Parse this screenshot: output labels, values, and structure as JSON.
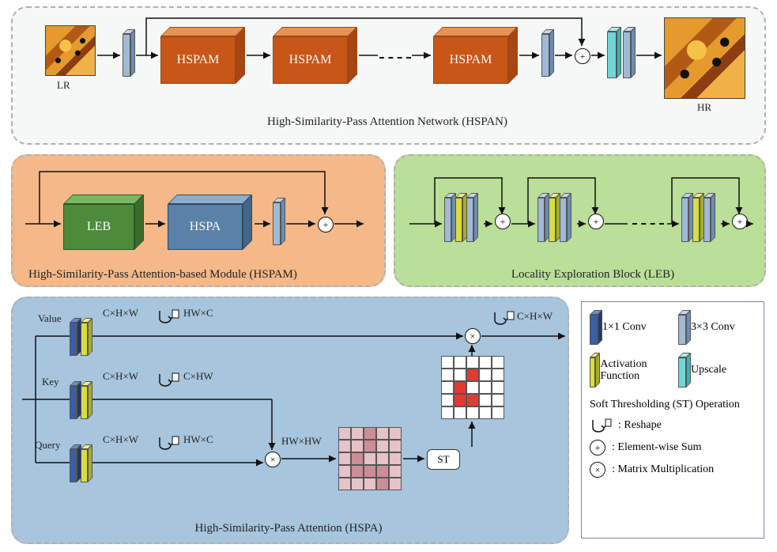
{
  "colors": {
    "panelGray": "#f6f7f7",
    "panelOrange": "#f5b888",
    "panelGreen": "#badf99",
    "panelBlue": "#a7c5dd",
    "hspamFront": "#c75618",
    "hspamTop": "#e69454",
    "hspamSide": "#a94510",
    "lebFront": "#4d8b3b",
    "lebTop": "#79b860",
    "lebSide": "#3a6c2b",
    "hspaFront": "#5a81a8",
    "hspaTop": "#8fadc8",
    "hspaSide": "#436587",
    "conv1x1": "#3a5fa3",
    "conv3x3": "#9fbad6",
    "activation": "#d9dd3e",
    "upscale": "#6fd6d6",
    "gridPink": "#cc8d97",
    "gridPinkLight": "#e5c3c8",
    "gridRed": "#e33a2f"
  },
  "top": {
    "lr": "LR",
    "hr": "HR",
    "caption": "High-Similarity-Pass Attention Network (HSPAN)",
    "hspamLabel": "HSPAM"
  },
  "midLeft": {
    "caption": "High-Similarity-Pass Attention-based Module (HSPAM)",
    "leb": "LEB",
    "hspa": "HSPA"
  },
  "midRight": {
    "caption": "Locality Exploration Block (LEB)"
  },
  "bottom": {
    "caption": "High-Similarity-Pass Attention (HSPA)",
    "value": "Value",
    "key": "Key",
    "query": "Query",
    "chw": "C×H×W",
    "hwc": "HW×C",
    "chw2": "C×HW",
    "hwhw": "HW×HW",
    "st": "ST",
    "outDim": "C×H×W"
  },
  "legend": {
    "conv1": "1×1 Conv",
    "conv3": "3×3 Conv",
    "act": "Activation Function",
    "up": "Upscale",
    "stTitle": "Soft Thresholding (ST) Operation",
    "reshape": ": Reshape",
    "esum": ": Element-wise Sum",
    "mmul": ": Matrix Multiplication"
  },
  "grids": {
    "pink": {
      "baseColor": "#e5c3c8",
      "darkCells": [
        2,
        7,
        11,
        16,
        17,
        18,
        23
      ],
      "darkColor": "#cc8d97"
    },
    "sparse": {
      "baseColor": "#ffffff",
      "redCells": [
        7,
        11,
        16,
        17
      ],
      "redColor": "#e33a2f"
    }
  }
}
